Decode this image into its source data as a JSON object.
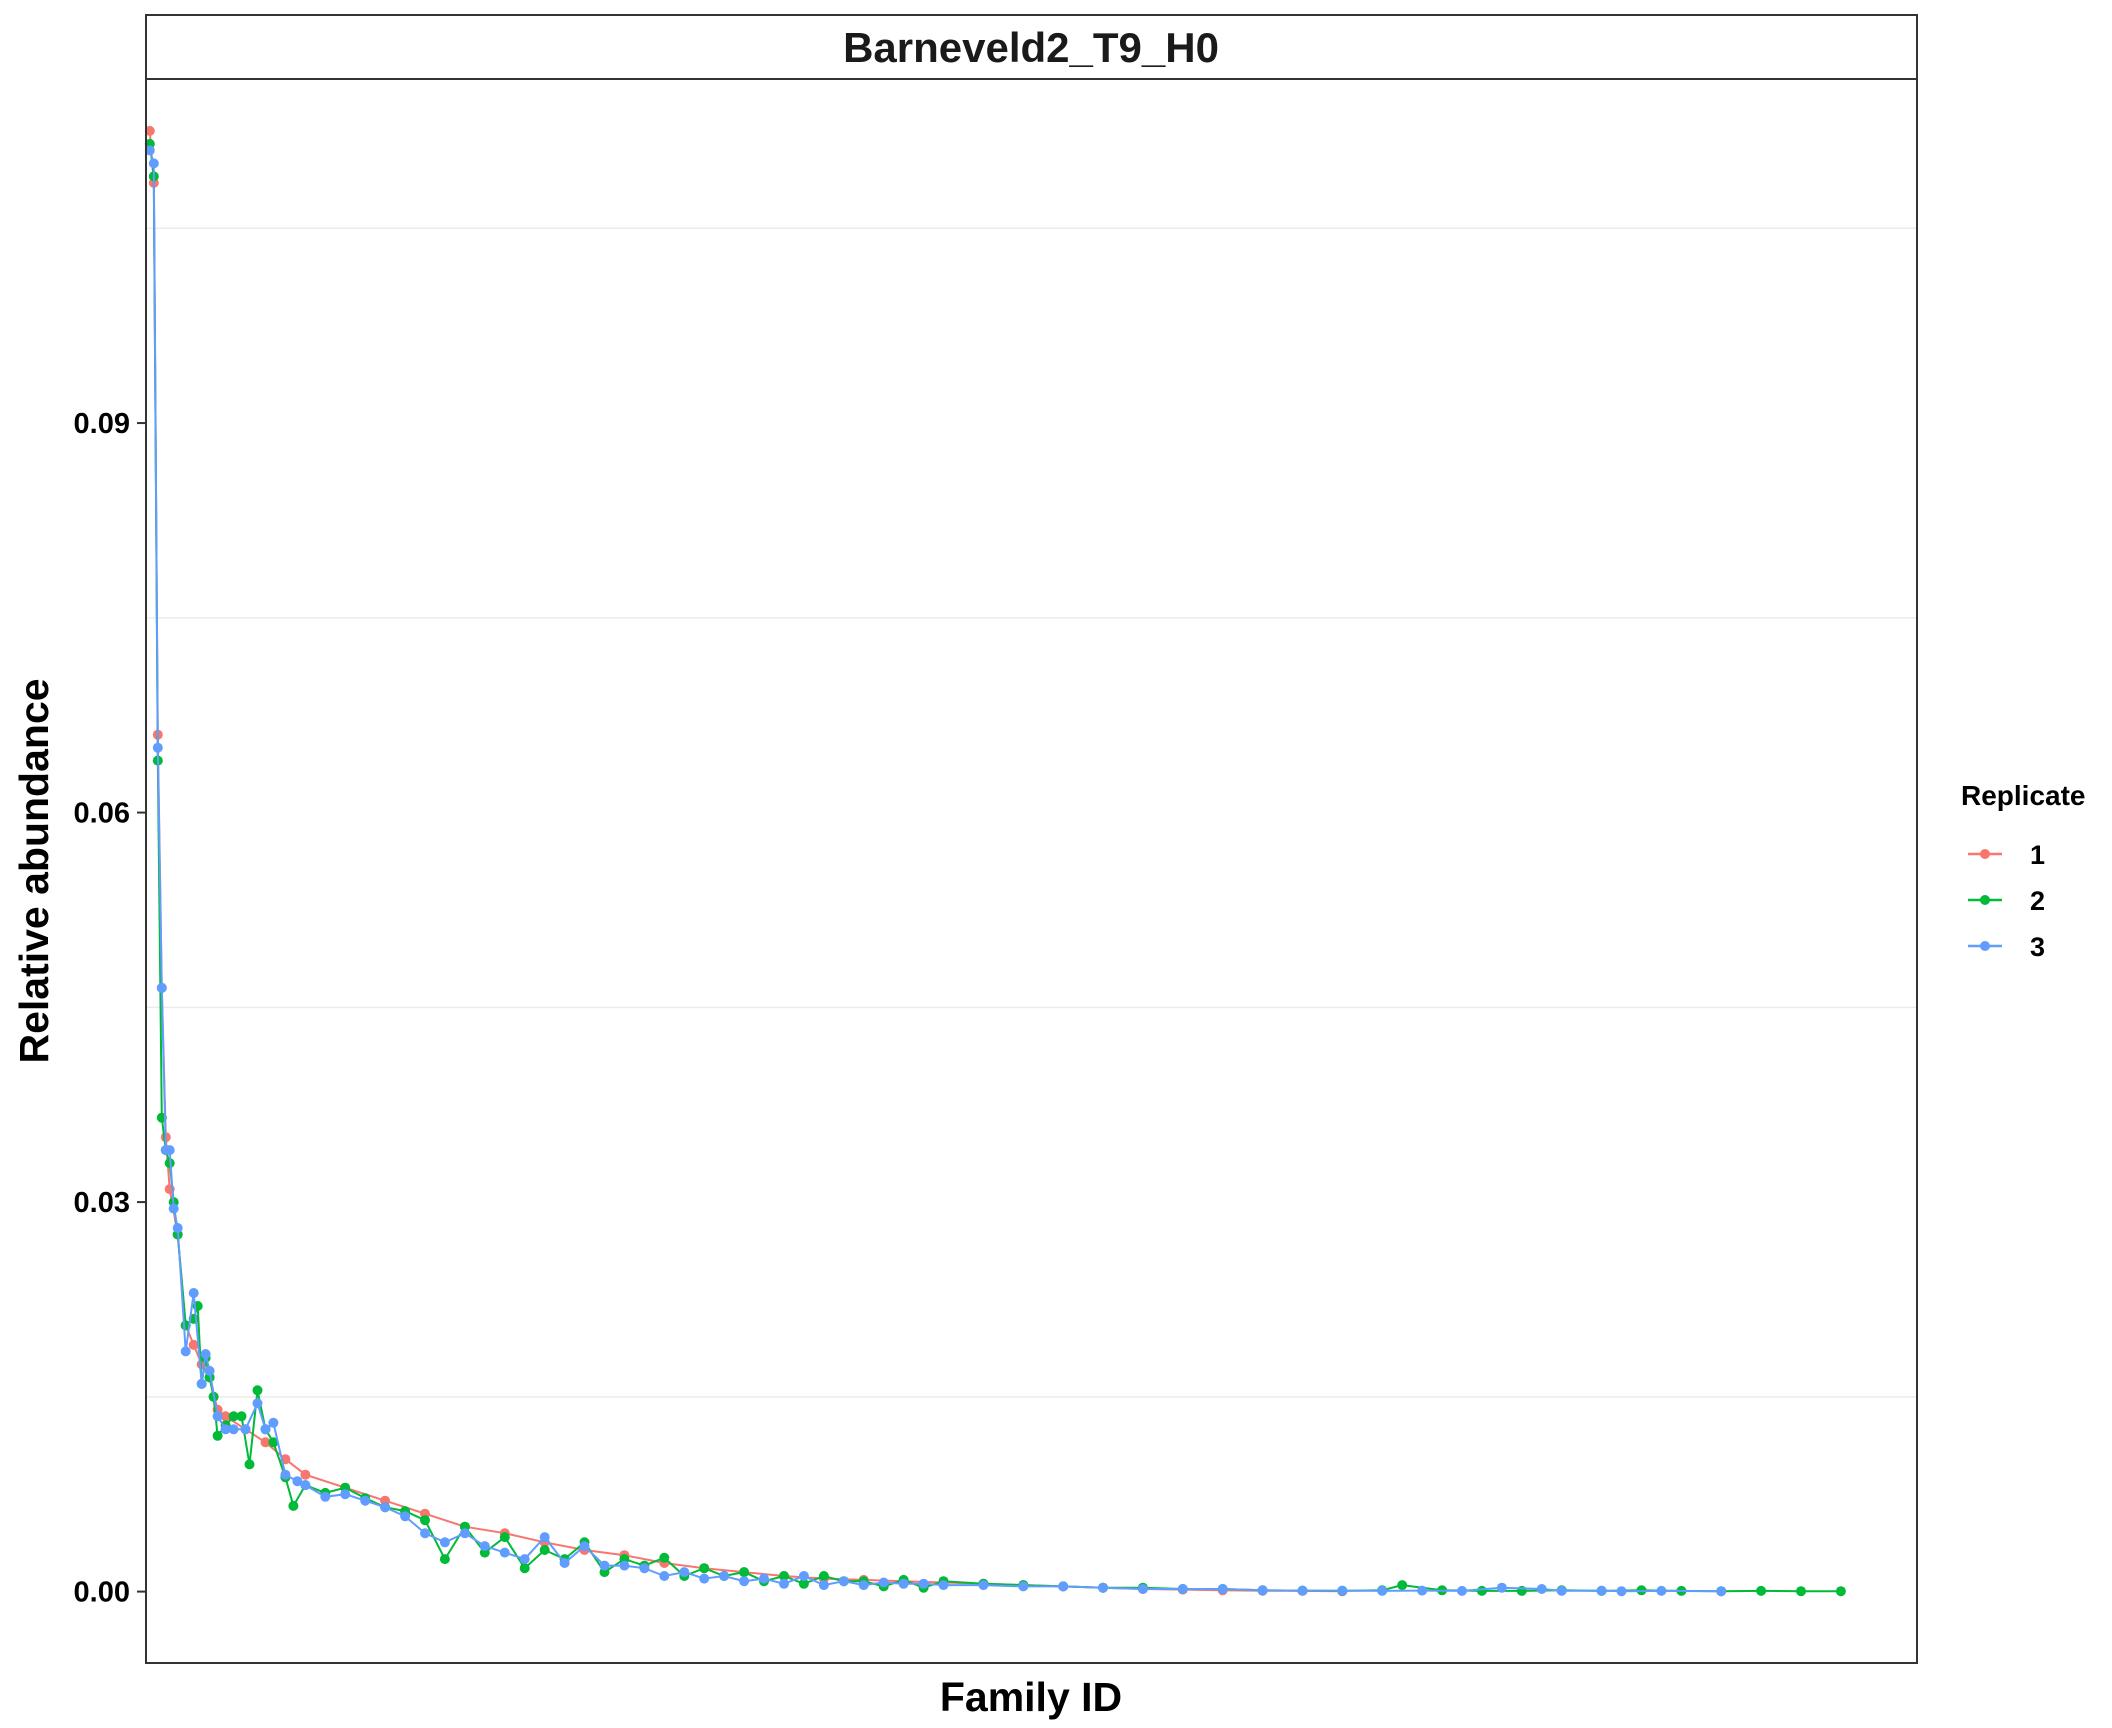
{
  "chart_data": {
    "type": "line",
    "facet_title": "Barneveld2_T9_H0",
    "xlabel": "Family ID",
    "ylabel": "Relative abundance",
    "x_tick_labels": false,
    "ylim": [
      -0.0055,
      0.1165
    ],
    "y_ticks": [
      0.0,
      0.03,
      0.06,
      0.09
    ],
    "y_tick_labels": [
      "0.00",
      "0.03",
      "0.06",
      "0.09"
    ],
    "grid": "major and minor horizontal only",
    "legend": {
      "title": "Replicate",
      "placement": "right",
      "entries": [
        "1",
        "2",
        "3"
      ]
    },
    "series": [
      {
        "name": "1",
        "color": "#F8766D",
        "points": [
          [
            1,
            0.1125
          ],
          [
            2,
            0.1085
          ],
          [
            3,
            0.066
          ],
          [
            4,
            0.0465
          ],
          [
            5,
            0.035
          ],
          [
            6,
            0.031
          ],
          [
            8,
            0.0275
          ],
          [
            10,
            0.0205
          ],
          [
            12,
            0.019
          ],
          [
            14,
            0.0175
          ],
          [
            16,
            0.0165
          ],
          [
            18,
            0.014
          ],
          [
            20,
            0.0135
          ],
          [
            25,
            0.0125
          ],
          [
            30,
            0.0115
          ],
          [
            35,
            0.0102
          ],
          [
            40,
            0.009
          ],
          [
            50,
            0.008
          ],
          [
            60,
            0.007
          ],
          [
            70,
            0.006
          ],
          [
            80,
            0.005
          ],
          [
            90,
            0.0045
          ],
          [
            100,
            0.0038
          ],
          [
            110,
            0.0032
          ],
          [
            120,
            0.0028
          ],
          [
            130,
            0.0022
          ],
          [
            140,
            0.0018
          ],
          [
            150,
            0.0015
          ],
          [
            160,
            0.0012
          ],
          [
            170,
            0.001
          ],
          [
            180,
            0.0009
          ],
          [
            190,
            0.0008
          ],
          [
            200,
            0.0007
          ],
          [
            210,
            0.0006
          ],
          [
            220,
            0.0005
          ],
          [
            230,
            0.0004
          ],
          [
            240,
            0.0003
          ],
          [
            250,
            0.0002
          ],
          [
            260,
            0.00015
          ],
          [
            270,
            0.0001
          ],
          [
            280,
            7e-05
          ],
          [
            290,
            5e-05
          ],
          [
            300,
            3e-05
          ]
        ]
      },
      {
        "name": "2",
        "color": "#00BA38",
        "points": [
          [
            1,
            0.1115
          ],
          [
            2,
            0.109
          ],
          [
            3,
            0.064
          ],
          [
            4,
            0.0365
          ],
          [
            5,
            0.034
          ],
          [
            6,
            0.033
          ],
          [
            7,
            0.03
          ],
          [
            8,
            0.0275
          ],
          [
            10,
            0.0205
          ],
          [
            12,
            0.021
          ],
          [
            13,
            0.022
          ],
          [
            14,
            0.016
          ],
          [
            15,
            0.018
          ],
          [
            16,
            0.0165
          ],
          [
            17,
            0.015
          ],
          [
            18,
            0.012
          ],
          [
            20,
            0.0128
          ],
          [
            22,
            0.0135
          ],
          [
            24,
            0.0135
          ],
          [
            26,
            0.0098
          ],
          [
            28,
            0.0155
          ],
          [
            30,
            0.0125
          ],
          [
            32,
            0.0115
          ],
          [
            35,
            0.0088
          ],
          [
            37,
            0.0066
          ],
          [
            40,
            0.0082
          ],
          [
            45,
            0.0076
          ],
          [
            50,
            0.008
          ],
          [
            55,
            0.0072
          ],
          [
            60,
            0.0065
          ],
          [
            65,
            0.0062
          ],
          [
            70,
            0.0055
          ],
          [
            75,
            0.0025
          ],
          [
            80,
            0.005
          ],
          [
            85,
            0.003
          ],
          [
            90,
            0.0042
          ],
          [
            95,
            0.0018
          ],
          [
            100,
            0.0032
          ],
          [
            105,
            0.0025
          ],
          [
            110,
            0.0038
          ],
          [
            115,
            0.0015
          ],
          [
            120,
            0.0025
          ],
          [
            125,
            0.002
          ],
          [
            130,
            0.0026
          ],
          [
            135,
            0.0012
          ],
          [
            140,
            0.0018
          ],
          [
            145,
            0.0012
          ],
          [
            150,
            0.0015
          ],
          [
            155,
            0.0008
          ],
          [
            160,
            0.0012
          ],
          [
            165,
            0.0006
          ],
          [
            170,
            0.0012
          ],
          [
            175,
            0.0008
          ],
          [
            180,
            0.0008
          ],
          [
            185,
            0.0004
          ],
          [
            190,
            0.0009
          ],
          [
            195,
            0.0003
          ],
          [
            200,
            0.0008
          ],
          [
            210,
            0.0006
          ],
          [
            220,
            0.0005
          ],
          [
            230,
            0.0004
          ],
          [
            240,
            0.0003
          ],
          [
            250,
            0.0003
          ],
          [
            260,
            0.0002
          ],
          [
            270,
            0.0002
          ],
          [
            280,
            0.0001
          ],
          [
            290,
            8e-05
          ],
          [
            300,
            5e-05
          ],
          [
            310,
            0.0001
          ],
          [
            315,
            0.0005
          ],
          [
            325,
            0.0001
          ],
          [
            335,
            5e-05
          ],
          [
            345,
            5e-05
          ],
          [
            355,
            0.0001
          ],
          [
            365,
            5e-05
          ],
          [
            375,
            0.0001
          ],
          [
            385,
            5e-05
          ],
          [
            395,
            3e-05
          ],
          [
            405,
            5e-05
          ],
          [
            415,
            3e-05
          ],
          [
            425,
            3e-05
          ]
        ]
      },
      {
        "name": "3",
        "color": "#619CFF",
        "points": [
          [
            1,
            0.111
          ],
          [
            2,
            0.11
          ],
          [
            3,
            0.065
          ],
          [
            4,
            0.0465
          ],
          [
            5,
            0.034
          ],
          [
            6,
            0.034
          ],
          [
            7,
            0.0295
          ],
          [
            8,
            0.028
          ],
          [
            10,
            0.0185
          ],
          [
            12,
            0.023
          ],
          [
            14,
            0.016
          ],
          [
            15,
            0.0183
          ],
          [
            16,
            0.017
          ],
          [
            18,
            0.0135
          ],
          [
            20,
            0.0125
          ],
          [
            22,
            0.0125
          ],
          [
            25,
            0.0125
          ],
          [
            28,
            0.0145
          ],
          [
            30,
            0.0125
          ],
          [
            32,
            0.013
          ],
          [
            35,
            0.009
          ],
          [
            38,
            0.0085
          ],
          [
            40,
            0.0082
          ],
          [
            45,
            0.0073
          ],
          [
            50,
            0.0075
          ],
          [
            55,
            0.007
          ],
          [
            60,
            0.0065
          ],
          [
            65,
            0.0058
          ],
          [
            70,
            0.0045
          ],
          [
            75,
            0.0038
          ],
          [
            80,
            0.0045
          ],
          [
            85,
            0.0035
          ],
          [
            90,
            0.003
          ],
          [
            95,
            0.0025
          ],
          [
            100,
            0.0042
          ],
          [
            105,
            0.0022
          ],
          [
            110,
            0.0035
          ],
          [
            115,
            0.002
          ],
          [
            120,
            0.002
          ],
          [
            125,
            0.0018
          ],
          [
            130,
            0.0012
          ],
          [
            135,
            0.0015
          ],
          [
            140,
            0.001
          ],
          [
            145,
            0.0012
          ],
          [
            150,
            0.0008
          ],
          [
            155,
            0.001
          ],
          [
            160,
            0.0006
          ],
          [
            165,
            0.0012
          ],
          [
            170,
            0.0005
          ],
          [
            175,
            0.0008
          ],
          [
            180,
            0.0005
          ],
          [
            185,
            0.0007
          ],
          [
            190,
            0.0006
          ],
          [
            195,
            0.0006
          ],
          [
            200,
            0.0005
          ],
          [
            210,
            0.0005
          ],
          [
            220,
            0.0004
          ],
          [
            230,
            0.0004
          ],
          [
            240,
            0.0003
          ],
          [
            250,
            0.0002
          ],
          [
            260,
            0.0002
          ],
          [
            270,
            0.0002
          ],
          [
            280,
            0.0001
          ],
          [
            290,
            8e-05
          ],
          [
            300,
            8e-05
          ],
          [
            310,
            5e-05
          ],
          [
            320,
            8e-05
          ],
          [
            330,
            5e-05
          ],
          [
            340,
            0.0003
          ],
          [
            350,
            0.0002
          ],
          [
            355,
            5e-05
          ],
          [
            365,
            8e-05
          ],
          [
            370,
            3e-05
          ],
          [
            380,
            5e-05
          ],
          [
            395,
            3e-05
          ]
        ]
      }
    ]
  }
}
